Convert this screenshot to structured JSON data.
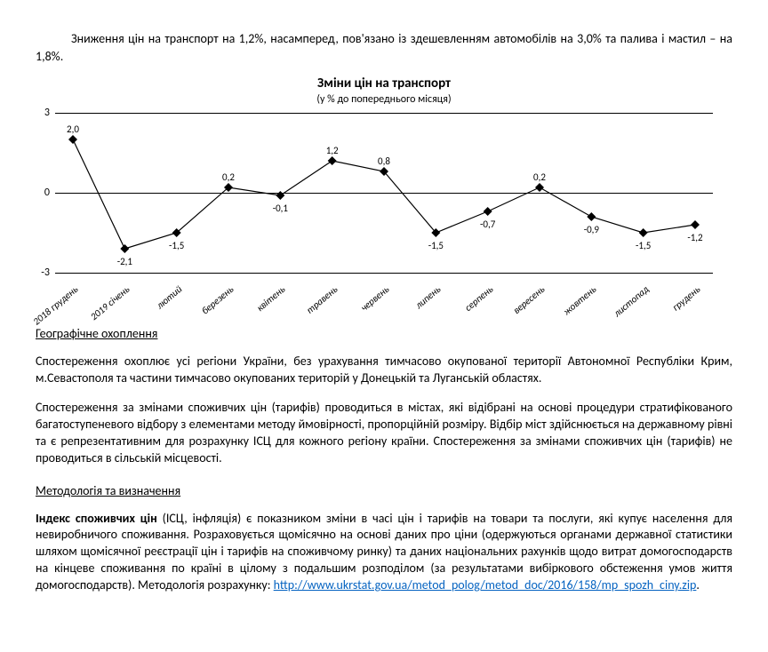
{
  "intro": "Зниження цін на транспорт на 1,2%, насамперед, пов'язано із здешевленням автомобілів на 3,0% та палива і мастил – на 1,8%.",
  "chart": {
    "type": "line",
    "title": "Зміни цін на транспорт",
    "subtitle": "(у % до попереднього місяця)",
    "ylim_min": -3,
    "ylim_max": 3,
    "ytick_step": 3,
    "y_ticks": [
      -3,
      0,
      3
    ],
    "line_color": "#000000",
    "marker_color": "#000000",
    "marker_shape": "diamond",
    "marker_size": 5,
    "line_width": 1.2,
    "grid_color": "#000000",
    "background_color": "#ffffff",
    "label_fontsize": 11,
    "axis_fontsize": 12,
    "title_fontsize": 15,
    "categories": [
      "2018 грудень",
      "2019 січень",
      "лютий",
      "березень",
      "квітень",
      "травень",
      "червень",
      "липень",
      "серпень",
      "вересень",
      "жовтень",
      "листопад",
      "грудень"
    ],
    "values": [
      2.0,
      -2.1,
      -1.5,
      0.2,
      -0.1,
      1.2,
      0.8,
      -1.5,
      -0.7,
      0.2,
      -0.9,
      -1.5,
      -1.2
    ],
    "value_labels": [
      "2,0",
      "-2,1",
      "-1,5",
      "0,2",
      "-0,1",
      "1,2",
      "0,8",
      "-1,5",
      "-0,7",
      "0,2",
      "-0,9",
      "-1,5",
      "-1,2"
    ],
    "label_above": [
      true,
      false,
      false,
      true,
      false,
      true,
      true,
      false,
      false,
      true,
      false,
      false,
      false
    ]
  },
  "sections": {
    "geo_heading": "Географічне охоплення",
    "geo_p1": "Спостереження охоплює усі регіони України, без урахування тимчасово окупованої території Автономної Республіки Крим, м.Севастополя та частини тимчасово окупованих територій у Донецькій та Луганській областях.",
    "geo_p2": "Спостереження за змінами споживчих цін (тарифів) проводиться в містах, які відібрані на основі процедури стратифікованого багатоступеневого відбору з елементами методу ймовірності, пропорційній розміру. Відбір міст здійснюється на державному рівні та є репрезентативним для розрахунку ІСЦ для кожного регіону країни. Спостереження за змінами споживчих цін (тарифів) не проводиться в сільській місцевості.",
    "method_heading": "Методологія та визначення",
    "method_lead": "Індекс споживчих цін",
    "method_body": " (ІСЦ, інфляція) є показником зміни в часі цін і тарифів на товари та послуги, які купує населення для невиробничого споживання. Розраховується щомісячно на основі даних про ціни (одержуються органами державної статистики шляхом щомісячної реєстрації цін і тарифів на споживчому ринку) та даних національних рахунків щодо витрат домогосподарств на кінцеве споживання по країні в цілому з подальшим розподілом (за результатами вибіркового обстеження умов життя домогосподарств). Методологія розрахунку: ",
    "method_link": "http://www.ukrstat.gov.ua/metod_polog/metod_doc/2016/158/mp_spozh_ciny.zip"
  }
}
